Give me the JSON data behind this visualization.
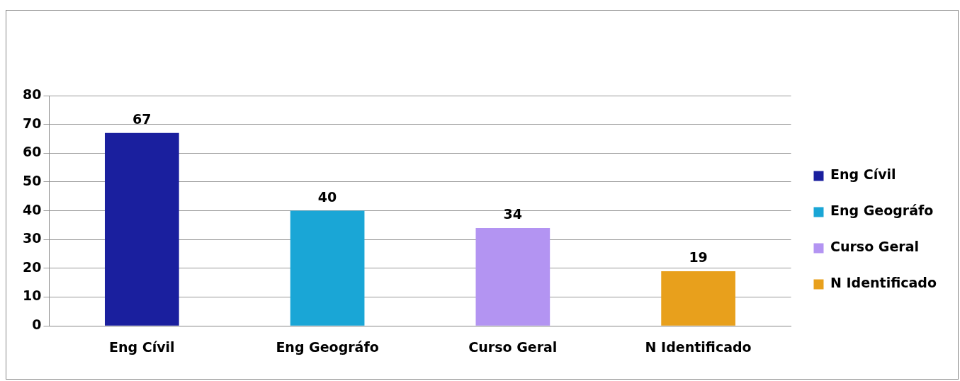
{
  "chart_data": {
    "type": "bar",
    "categories": [
      "Eng Cívil",
      "Eng Geográfo",
      "Curso Geral",
      "N Identificado"
    ],
    "series": [
      {
        "name": "Eng Cívil",
        "color": "#1a1f9e",
        "values": [
          67,
          null,
          null,
          null
        ]
      },
      {
        "name": "Eng Geográfo",
        "color": "#1aa6d6",
        "values": [
          null,
          40,
          null,
          null
        ]
      },
      {
        "name": "Curso Geral",
        "color": "#b394f2",
        "values": [
          null,
          null,
          34,
          null
        ]
      },
      {
        "name": "N Identificado",
        "color": "#e8a01c",
        "values": [
          null,
          null,
          null,
          19
        ]
      }
    ],
    "stacked": true,
    "ylim": [
      0,
      80
    ],
    "yticks": [
      0,
      10,
      20,
      30,
      40,
      50,
      60,
      70,
      80
    ],
    "grid": "y",
    "legend": "right",
    "data_labels": true
  }
}
